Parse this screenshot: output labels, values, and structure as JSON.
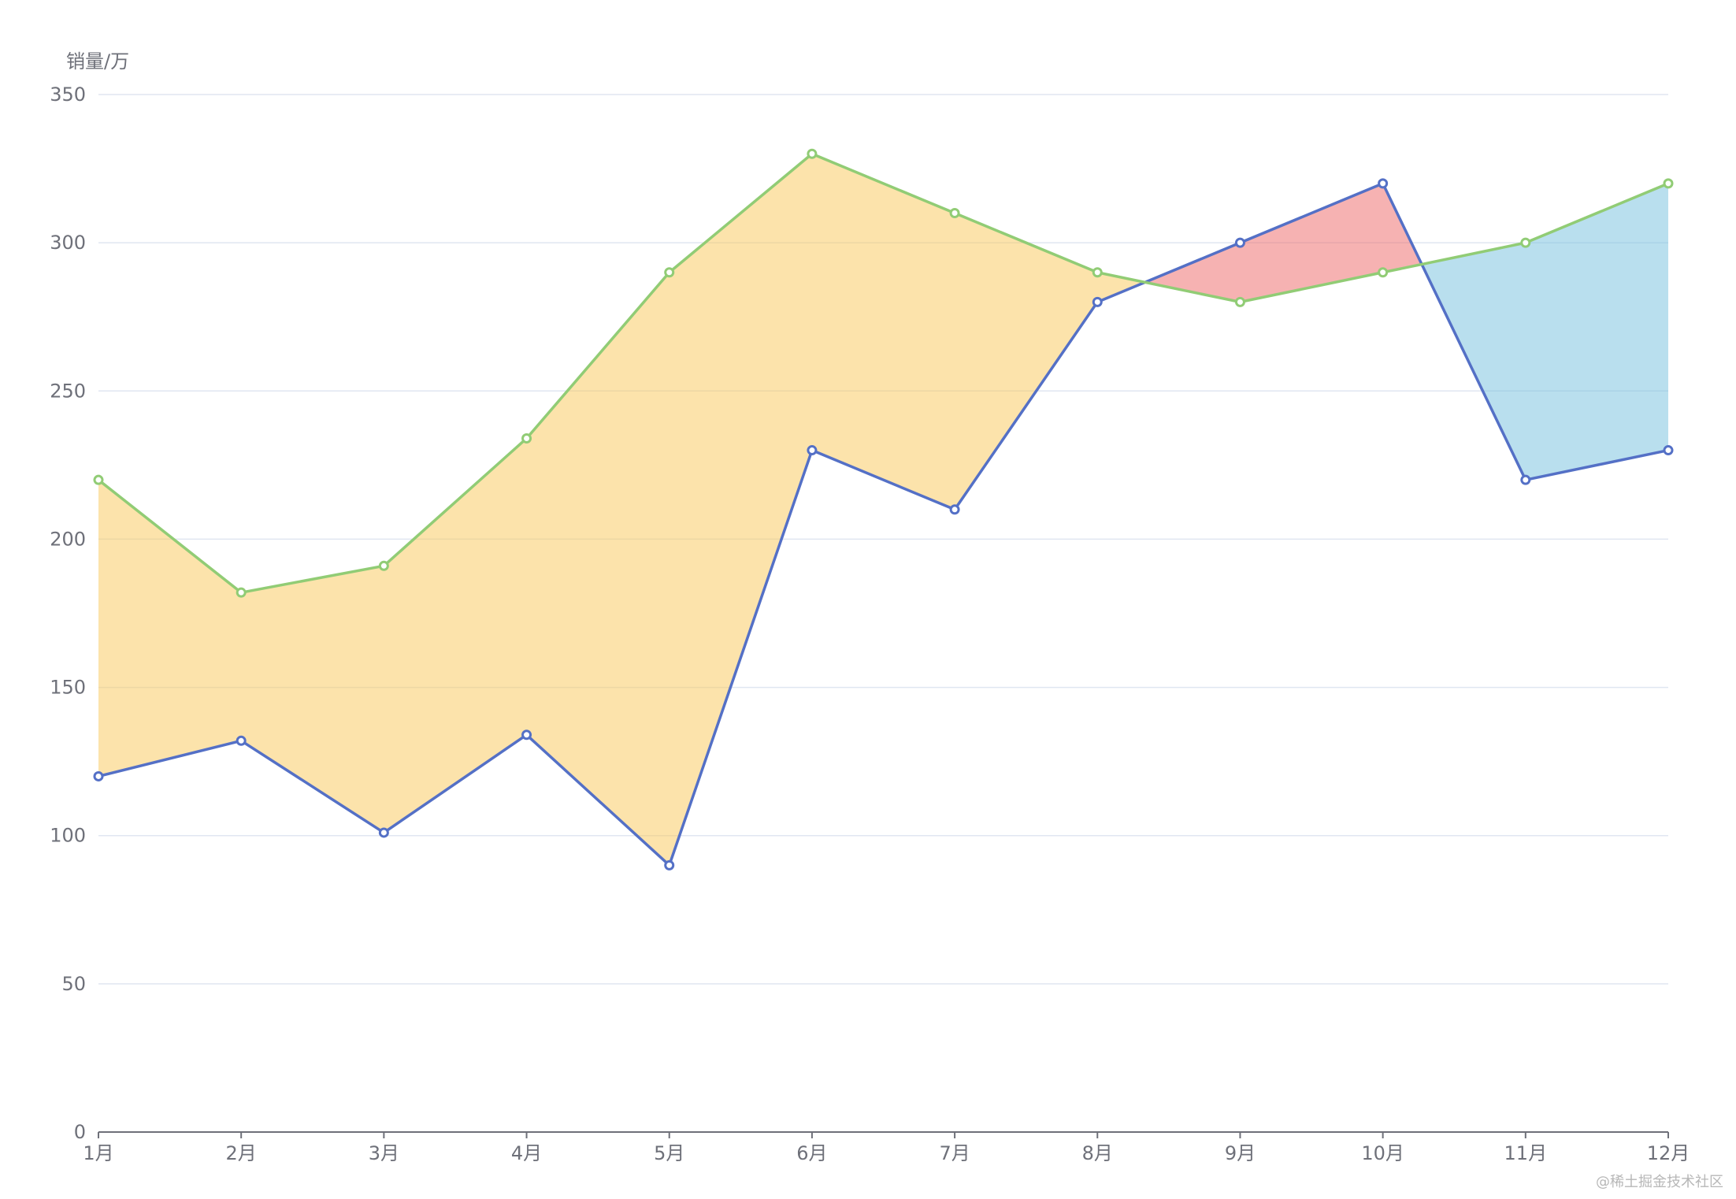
{
  "watermark": "@稀土掘金技术社区",
  "chart_data": {
    "type": "area",
    "ylabel": "销量/万",
    "ylim": [
      0,
      350
    ],
    "y_ticks": [
      0,
      50,
      100,
      150,
      200,
      250,
      300,
      350
    ],
    "categories": [
      "1月",
      "2月",
      "3月",
      "4月",
      "5月",
      "6月",
      "7月",
      "8月",
      "9月",
      "10月",
      "11月",
      "12月"
    ],
    "series": [
      {
        "color": "#5470c6",
        "values": [
          120,
          132,
          101,
          134,
          90,
          230,
          210,
          280,
          300,
          320,
          220,
          230
        ]
      },
      {
        "color": "#91cc75",
        "values": [
          220,
          182,
          191,
          234,
          290,
          330,
          310,
          290,
          280,
          290,
          300,
          320
        ]
      }
    ],
    "band_fill": {
      "green_above_blue": "#fac858",
      "blue_above_green": "#ee6666",
      "green_above_blue_after_crossover": "#73c0de"
    },
    "grid": true,
    "legend": "none"
  }
}
